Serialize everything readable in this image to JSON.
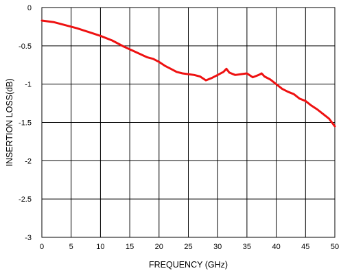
{
  "chart_data": {
    "type": "line",
    "title": "",
    "xlabel": "FREQUENCY (GHz)",
    "ylabel": "INSERTION LOSS(dB)",
    "xlim": [
      0,
      50
    ],
    "ylim": [
      -3,
      0
    ],
    "x_ticks": [
      0,
      5,
      10,
      15,
      20,
      25,
      30,
      35,
      40,
      45,
      50
    ],
    "y_ticks": [
      0,
      -0.5,
      -1,
      -1.5,
      -2,
      -2.5,
      -3
    ],
    "x_tick_labels": [
      "0",
      "5",
      "10",
      "15",
      "20",
      "25",
      "30",
      "35",
      "40",
      "45",
      "50"
    ],
    "y_tick_labels": [
      "0",
      "-0.5",
      "-1",
      "-1.5",
      "-2",
      "-2.5",
      "-3"
    ],
    "grid": true,
    "legend": "none",
    "series": [
      {
        "color": "#ee1111",
        "x": [
          0,
          2,
          4,
          6,
          8,
          10,
          12,
          14,
          16,
          18,
          19,
          20,
          21,
          22,
          23,
          24,
          25,
          26,
          27,
          28,
          29,
          30,
          31,
          31.5,
          32,
          33,
          34,
          35,
          36,
          37,
          37.5,
          38,
          39,
          40,
          41,
          42,
          43,
          44,
          45,
          46,
          47,
          48,
          49,
          49.5,
          50
        ],
        "y": [
          -0.17,
          -0.19,
          -0.23,
          -0.27,
          -0.32,
          -0.37,
          -0.43,
          -0.51,
          -0.58,
          -0.65,
          -0.67,
          -0.71,
          -0.76,
          -0.8,
          -0.84,
          -0.86,
          -0.87,
          -0.88,
          -0.9,
          -0.95,
          -0.92,
          -0.88,
          -0.84,
          -0.8,
          -0.85,
          -0.88,
          -0.87,
          -0.86,
          -0.91,
          -0.88,
          -0.86,
          -0.9,
          -0.94,
          -1.0,
          -1.06,
          -1.1,
          -1.13,
          -1.19,
          -1.22,
          -1.28,
          -1.33,
          -1.39,
          -1.45,
          -1.5,
          -1.55
        ]
      }
    ]
  }
}
